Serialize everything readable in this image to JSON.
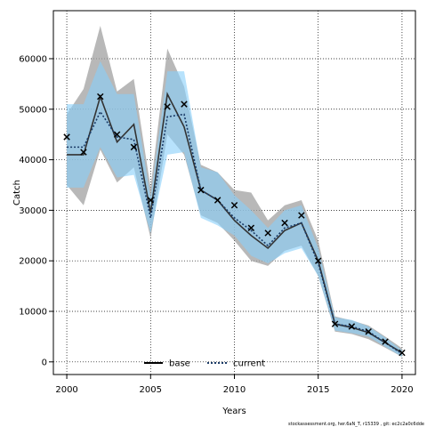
{
  "chart_data": {
    "type": "line",
    "xlabel": "Years",
    "ylabel": "Catch",
    "xlim": [
      1999.2,
      2020.8
    ],
    "ylim": [
      -2500,
      69500
    ],
    "xticks": [
      2000,
      2005,
      2010,
      2015,
      2020
    ],
    "yticks": [
      0,
      10000,
      20000,
      30000,
      40000,
      50000,
      60000
    ],
    "grid": true,
    "legend_placement": "bottom",
    "x": [
      2000,
      2001,
      2002,
      2003,
      2004,
      2005,
      2006,
      2007,
      2008,
      2009,
      2010,
      2011,
      2012,
      2013,
      2014,
      2015,
      2016,
      2017,
      2018,
      2019,
      2020
    ],
    "series": [
      {
        "name": "base",
        "color": "#333333",
        "band_color": "#a0a0a0",
        "values": [
          41000,
          41000,
          52500,
          43500,
          47000,
          29500,
          53000,
          46500,
          34000,
          32000,
          28000,
          25000,
          22500,
          26000,
          27500,
          20000,
          7500,
          6800,
          5800,
          3800,
          1800
        ],
        "lower": [
          35000,
          31000,
          42000,
          35500,
          38500,
          24500,
          45000,
          41000,
          29000,
          27500,
          24000,
          20000,
          19000,
          22000,
          23000,
          17000,
          6000,
          5500,
          4500,
          2800,
          1000
        ],
        "upper": [
          49000,
          54000,
          66500,
          53500,
          56000,
          34500,
          62000,
          54500,
          39000,
          37500,
          34000,
          33500,
          28000,
          31000,
          32000,
          24000,
          9000,
          8200,
          7200,
          5000,
          2700
        ]
      },
      {
        "name": "current",
        "color": "#1a3a66",
        "band_color": "#87cefa",
        "values": [
          42500,
          42500,
          49500,
          44500,
          44000,
          28500,
          48500,
          49000,
          34000,
          32000,
          28500,
          26000,
          23000,
          26500,
          27500,
          19500,
          7500,
          7000,
          6000,
          3800,
          1600
        ],
        "lower": [
          34500,
          34500,
          42500,
          36500,
          37000,
          25500,
          41000,
          41500,
          28500,
          27000,
          25000,
          21000,
          19500,
          21500,
          22500,
          17000,
          6200,
          5700,
          5000,
          3000,
          1000
        ],
        "upper": [
          51000,
          51000,
          59500,
          53000,
          53000,
          32500,
          57500,
          57500,
          38500,
          37500,
          33000,
          30000,
          26500,
          30000,
          31000,
          22500,
          8800,
          8300,
          7000,
          4800,
          2300
        ]
      }
    ],
    "observed": {
      "marker": "x",
      "x": [
        2000,
        2001,
        2002,
        2003,
        2004,
        2005,
        2006,
        2007,
        2008,
        2009,
        2010,
        2011,
        2012,
        2013,
        2014,
        2015,
        2016,
        2017,
        2018,
        2019,
        2020
      ],
      "values": [
        44500,
        41500,
        52500,
        45000,
        42500,
        32000,
        50500,
        51000,
        34000,
        32000,
        31000,
        26500,
        25500,
        27500,
        29000,
        20000,
        7500,
        7000,
        6000,
        4000,
        1800
      ]
    },
    "footer": "stockassessment.org, her.6aN_T, r15339 , git: ec2c2a0c6dde"
  }
}
